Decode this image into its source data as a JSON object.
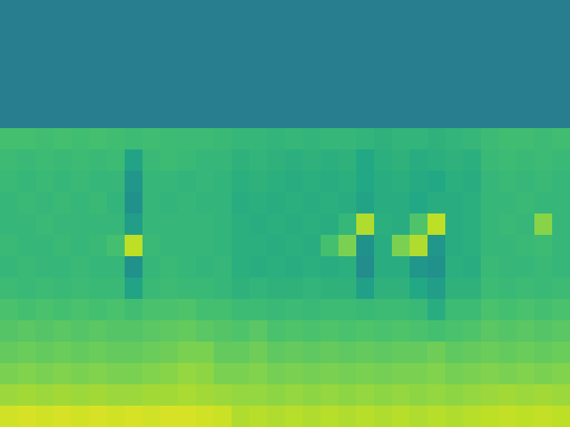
{
  "chart_data": {
    "type": "heatmap",
    "zlim": [
      0,
      1
    ],
    "tick_labels": false,
    "grid": false,
    "cells": [
      [
        0.42,
        0.42,
        0.42,
        0.42,
        0.42,
        0.42,
        0.42,
        0.42,
        0.42,
        0.42,
        0.42,
        0.42,
        0.42,
        0.42,
        0.42,
        0.42,
        0.42,
        0.42,
        0.42,
        0.42,
        0.42,
        0.42,
        0.42,
        0.42,
        0.42,
        0.42,
        0.42,
        0.42,
        0.42,
        0.42,
        0.42,
        0.42
      ],
      [
        0.42,
        0.42,
        0.42,
        0.42,
        0.42,
        0.42,
        0.42,
        0.42,
        0.42,
        0.42,
        0.42,
        0.42,
        0.42,
        0.42,
        0.42,
        0.42,
        0.42,
        0.42,
        0.42,
        0.42,
        0.42,
        0.42,
        0.42,
        0.42,
        0.42,
        0.42,
        0.42,
        0.42,
        0.42,
        0.42,
        0.42,
        0.42
      ],
      [
        0.42,
        0.42,
        0.42,
        0.42,
        0.42,
        0.42,
        0.42,
        0.42,
        0.42,
        0.42,
        0.42,
        0.42,
        0.42,
        0.42,
        0.42,
        0.42,
        0.42,
        0.42,
        0.42,
        0.42,
        0.42,
        0.42,
        0.42,
        0.42,
        0.42,
        0.42,
        0.42,
        0.42,
        0.42,
        0.42,
        0.42,
        0.42
      ],
      [
        0.42,
        0.42,
        0.42,
        0.42,
        0.42,
        0.42,
        0.42,
        0.42,
        0.42,
        0.42,
        0.42,
        0.42,
        0.42,
        0.42,
        0.42,
        0.42,
        0.42,
        0.42,
        0.42,
        0.42,
        0.42,
        0.42,
        0.42,
        0.42,
        0.42,
        0.42,
        0.42,
        0.42,
        0.42,
        0.42,
        0.42,
        0.42
      ],
      [
        0.42,
        0.42,
        0.42,
        0.42,
        0.42,
        0.42,
        0.42,
        0.42,
        0.42,
        0.42,
        0.42,
        0.42,
        0.42,
        0.42,
        0.42,
        0.42,
        0.42,
        0.42,
        0.42,
        0.42,
        0.42,
        0.42,
        0.42,
        0.42,
        0.42,
        0.42,
        0.42,
        0.42,
        0.42,
        0.42,
        0.42,
        0.42
      ],
      [
        0.42,
        0.42,
        0.42,
        0.42,
        0.42,
        0.42,
        0.42,
        0.42,
        0.42,
        0.42,
        0.42,
        0.42,
        0.42,
        0.42,
        0.42,
        0.42,
        0.42,
        0.42,
        0.42,
        0.42,
        0.42,
        0.42,
        0.42,
        0.42,
        0.42,
        0.42,
        0.42,
        0.42,
        0.42,
        0.42,
        0.42,
        0.42
      ],
      [
        0.7,
        0.7,
        0.69,
        0.7,
        0.69,
        0.7,
        0.69,
        0.68,
        0.69,
        0.68,
        0.68,
        0.68,
        0.67,
        0.66,
        0.66,
        0.65,
        0.66,
        0.65,
        0.66,
        0.66,
        0.65,
        0.64,
        0.65,
        0.65,
        0.64,
        0.65,
        0.66,
        0.68,
        0.69,
        0.69,
        0.68,
        0.69
      ],
      [
        0.68,
        0.67,
        0.68,
        0.67,
        0.68,
        0.67,
        0.68,
        0.58,
        0.67,
        0.68,
        0.67,
        0.66,
        0.66,
        0.64,
        0.65,
        0.64,
        0.63,
        0.64,
        0.63,
        0.64,
        0.6,
        0.63,
        0.64,
        0.62,
        0.63,
        0.64,
        0.63,
        0.67,
        0.68,
        0.67,
        0.68,
        0.67
      ],
      [
        0.67,
        0.66,
        0.67,
        0.66,
        0.67,
        0.66,
        0.66,
        0.52,
        0.66,
        0.66,
        0.65,
        0.66,
        0.65,
        0.63,
        0.64,
        0.63,
        0.62,
        0.63,
        0.62,
        0.63,
        0.6,
        0.62,
        0.63,
        0.61,
        0.6,
        0.63,
        0.62,
        0.66,
        0.67,
        0.66,
        0.67,
        0.66
      ],
      [
        0.66,
        0.67,
        0.66,
        0.67,
        0.66,
        0.67,
        0.65,
        0.5,
        0.66,
        0.65,
        0.66,
        0.65,
        0.65,
        0.62,
        0.63,
        0.62,
        0.63,
        0.62,
        0.63,
        0.62,
        0.58,
        0.62,
        0.62,
        0.6,
        0.62,
        0.62,
        0.63,
        0.66,
        0.66,
        0.67,
        0.66,
        0.66
      ],
      [
        0.66,
        0.66,
        0.67,
        0.66,
        0.66,
        0.66,
        0.66,
        0.55,
        0.66,
        0.66,
        0.66,
        0.66,
        0.65,
        0.63,
        0.62,
        0.63,
        0.62,
        0.63,
        0.62,
        0.66,
        0.88,
        0.63,
        0.62,
        0.72,
        0.9,
        0.62,
        0.63,
        0.66,
        0.67,
        0.66,
        0.82,
        0.66
      ],
      [
        0.67,
        0.66,
        0.66,
        0.67,
        0.66,
        0.67,
        0.7,
        0.9,
        0.67,
        0.66,
        0.66,
        0.66,
        0.65,
        0.63,
        0.63,
        0.62,
        0.63,
        0.62,
        0.7,
        0.8,
        0.5,
        0.62,
        0.8,
        0.88,
        0.52,
        0.62,
        0.63,
        0.66,
        0.66,
        0.67,
        0.68,
        0.66
      ],
      [
        0.66,
        0.67,
        0.66,
        0.66,
        0.67,
        0.66,
        0.66,
        0.5,
        0.66,
        0.67,
        0.66,
        0.65,
        0.66,
        0.63,
        0.62,
        0.63,
        0.62,
        0.63,
        0.62,
        0.63,
        0.48,
        0.62,
        0.62,
        0.52,
        0.5,
        0.63,
        0.62,
        0.67,
        0.66,
        0.66,
        0.67,
        0.66
      ],
      [
        0.68,
        0.67,
        0.68,
        0.67,
        0.68,
        0.67,
        0.67,
        0.58,
        0.67,
        0.68,
        0.67,
        0.67,
        0.66,
        0.64,
        0.65,
        0.64,
        0.64,
        0.65,
        0.64,
        0.64,
        0.56,
        0.64,
        0.64,
        0.6,
        0.55,
        0.64,
        0.64,
        0.68,
        0.67,
        0.68,
        0.67,
        0.68
      ],
      [
        0.71,
        0.7,
        0.71,
        0.7,
        0.71,
        0.7,
        0.71,
        0.69,
        0.71,
        0.71,
        0.72,
        0.7,
        0.7,
        0.68,
        0.68,
        0.67,
        0.68,
        0.67,
        0.68,
        0.68,
        0.67,
        0.68,
        0.68,
        0.67,
        0.62,
        0.68,
        0.68,
        0.71,
        0.7,
        0.71,
        0.7,
        0.71
      ],
      [
        0.73,
        0.74,
        0.73,
        0.74,
        0.73,
        0.74,
        0.73,
        0.73,
        0.74,
        0.75,
        0.76,
        0.74,
        0.73,
        0.72,
        0.74,
        0.71,
        0.72,
        0.71,
        0.72,
        0.71,
        0.72,
        0.71,
        0.72,
        0.71,
        0.7,
        0.71,
        0.72,
        0.74,
        0.73,
        0.74,
        0.73,
        0.74
      ],
      [
        0.76,
        0.77,
        0.76,
        0.77,
        0.76,
        0.77,
        0.76,
        0.76,
        0.77,
        0.78,
        0.8,
        0.8,
        0.76,
        0.76,
        0.78,
        0.75,
        0.76,
        0.75,
        0.76,
        0.75,
        0.76,
        0.75,
        0.76,
        0.76,
        0.78,
        0.75,
        0.76,
        0.77,
        0.76,
        0.77,
        0.76,
        0.77
      ],
      [
        0.8,
        0.81,
        0.8,
        0.81,
        0.8,
        0.81,
        0.8,
        0.8,
        0.81,
        0.82,
        0.84,
        0.83,
        0.8,
        0.8,
        0.81,
        0.79,
        0.8,
        0.79,
        0.8,
        0.79,
        0.8,
        0.79,
        0.8,
        0.8,
        0.81,
        0.79,
        0.8,
        0.81,
        0.8,
        0.81,
        0.8,
        0.81
      ],
      [
        0.85,
        0.86,
        0.85,
        0.86,
        0.85,
        0.86,
        0.85,
        0.85,
        0.86,
        0.86,
        0.87,
        0.86,
        0.85,
        0.84,
        0.84,
        0.83,
        0.84,
        0.83,
        0.84,
        0.83,
        0.84,
        0.83,
        0.84,
        0.83,
        0.84,
        0.83,
        0.84,
        0.85,
        0.86,
        0.85,
        0.86,
        0.85
      ],
      [
        0.93,
        0.94,
        0.93,
        0.94,
        0.93,
        0.94,
        0.93,
        0.94,
        0.93,
        0.94,
        0.94,
        0.93,
        0.92,
        0.88,
        0.89,
        0.88,
        0.89,
        0.88,
        0.89,
        0.88,
        0.89,
        0.88,
        0.89,
        0.88,
        0.89,
        0.88,
        0.89,
        0.9,
        0.91,
        0.9,
        0.91,
        0.9
      ]
    ]
  }
}
